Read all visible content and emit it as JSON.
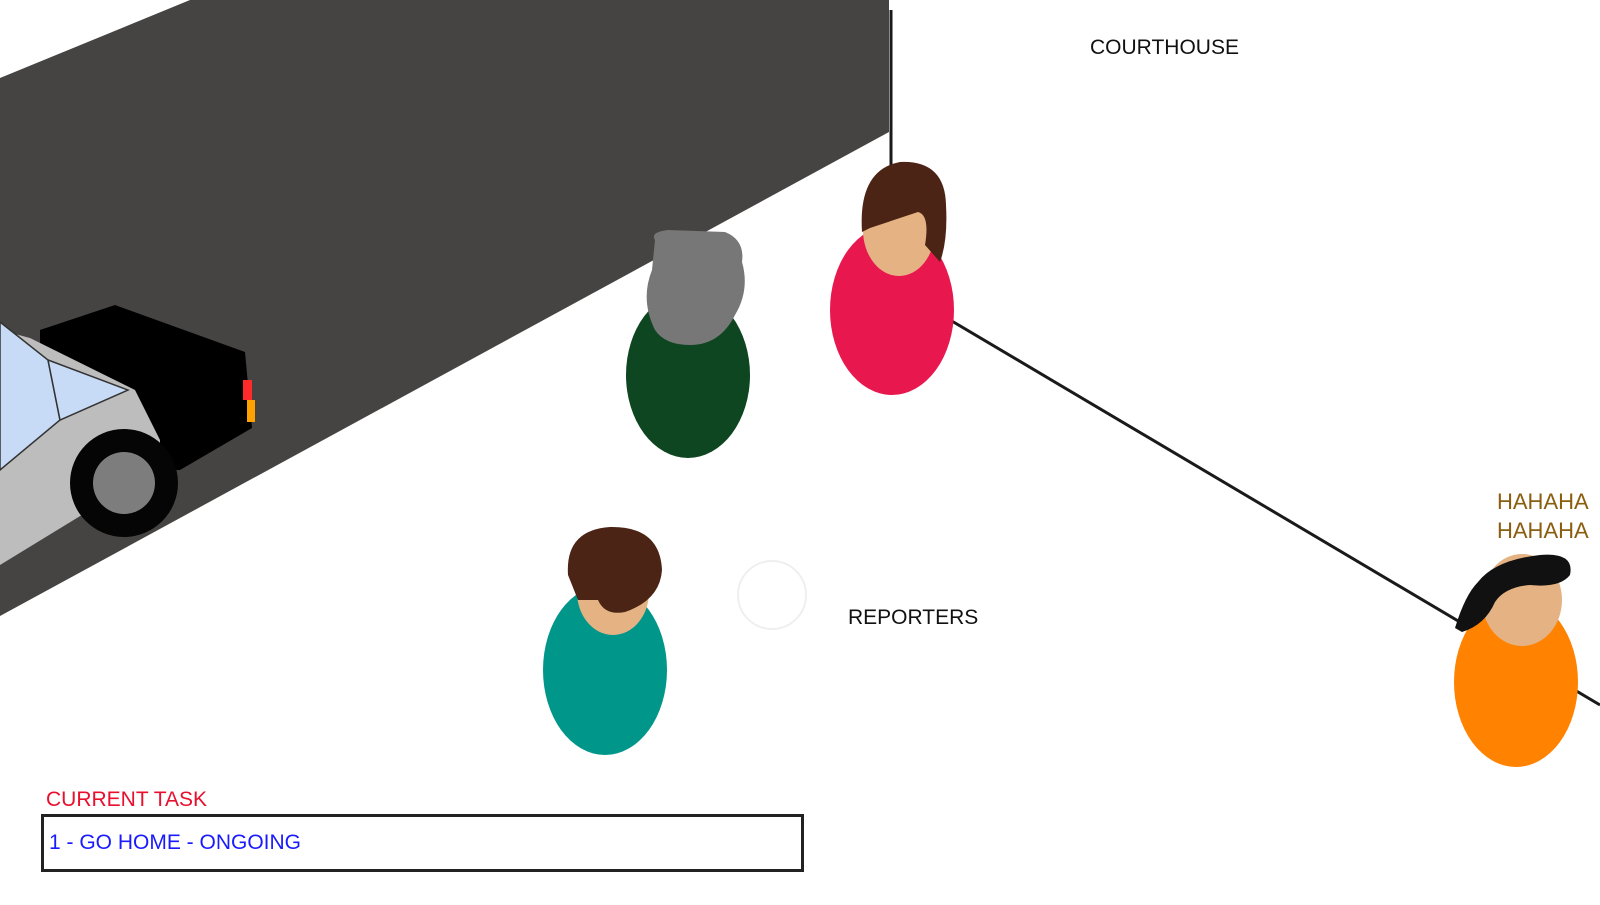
{
  "scene": {
    "location_label": "COURTHOUSE",
    "group_label": "REPORTERS",
    "laugh_text": "HAHAHA\nHAHAHA",
    "laugh_color": "#8b5e0f"
  },
  "hud": {
    "task_heading": "CURRENT TASK",
    "task_heading_color": "#e8102f",
    "task_text": "1 - GO HOME - ONGOING",
    "task_text_color": "#1a1aff"
  },
  "characters": [
    {
      "name": "reporter-gray-hair",
      "shirt": "#0d4620",
      "hair": "#777777"
    },
    {
      "name": "reporter-brown-hair-pink",
      "shirt": "#e8174e",
      "hair": "#4b2416"
    },
    {
      "name": "reporter-brown-hair-teal",
      "shirt": "#00968a",
      "hair": "#4b2416"
    },
    {
      "name": "player-laughing",
      "shirt": "#ff8200",
      "hair": "#111111"
    }
  ],
  "colors": {
    "road": "#454443",
    "car_body": "#bdbdbd",
    "car_windshield": "#c7dbf6",
    "car_trunk": "#000000",
    "tail_light": "#ff2a2a",
    "indicator_light": "#ffa200",
    "skin": "#e5b383"
  }
}
